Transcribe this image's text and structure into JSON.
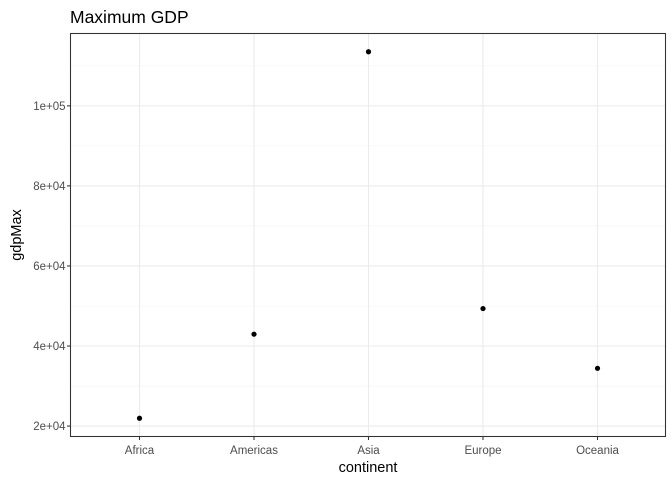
{
  "chart_data": {
    "type": "scatter",
    "title": "Maximum GDP",
    "xlabel": "continent",
    "ylabel": "gdpMax",
    "categories": [
      "Africa",
      "Americas",
      "Asia",
      "Europe",
      "Oceania"
    ],
    "values": [
      21951.21,
      42951.65,
      113523.13,
      49357.19,
      34435.37
    ],
    "y_ticks": [
      20000,
      40000,
      60000,
      80000,
      100000
    ],
    "y_tick_labels": [
      "2e+04",
      "4e+04",
      "6e+04",
      "8e+04",
      "1e+05"
    ],
    "ylim": [
      17396,
      118078
    ],
    "grid": true,
    "theme": "bw",
    "point_color": "#000000"
  }
}
